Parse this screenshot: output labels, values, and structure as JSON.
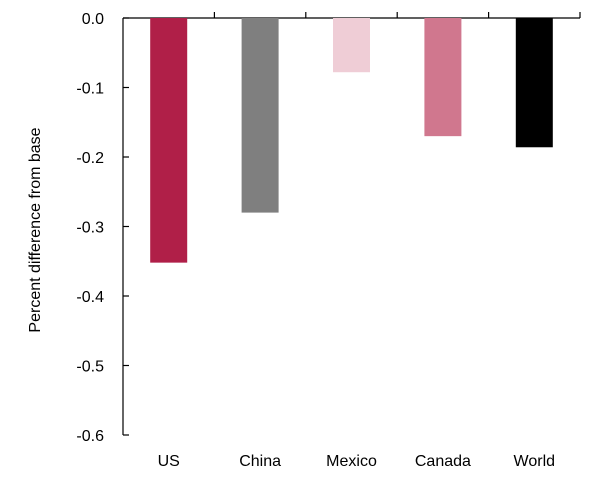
{
  "chart_data": {
    "type": "bar",
    "title": "",
    "xlabel": "",
    "ylabel": "Percent difference from base",
    "categories": [
      "US",
      "China",
      "Mexico",
      "Canada",
      "World"
    ],
    "values": [
      -0.352,
      -0.28,
      -0.078,
      -0.17,
      -0.186
    ],
    "bar_colors": [
      "#b01f48",
      "#7f7f7f",
      "#efcdd6",
      "#d0778e",
      "#000000"
    ],
    "ylim": [
      -0.6,
      0.0
    ],
    "yticks": [
      0.0,
      -0.1,
      -0.2,
      -0.3,
      -0.4,
      -0.5,
      -0.6
    ],
    "ytick_labels": [
      "0.0",
      "-0.1",
      "-0.2",
      "-0.3",
      "-0.4",
      "-0.5",
      "-0.6"
    ],
    "grid": false,
    "legend": "none"
  }
}
